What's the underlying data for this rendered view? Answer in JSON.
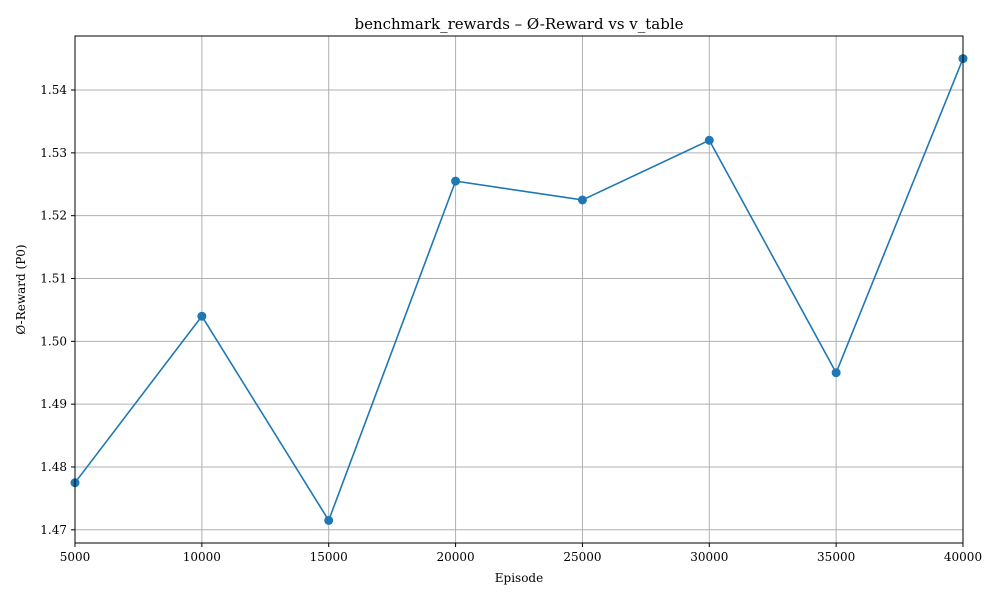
{
  "chart_data": {
    "type": "line",
    "title": "benchmark_rewards – Ø-Reward vs v_table",
    "xlabel": "Episode",
    "ylabel": "Ø-Reward (P0)",
    "xlim": [
      5000,
      40000
    ],
    "ylim": [
      1.4679,
      1.5486
    ],
    "xticks": [
      5000,
      10000,
      15000,
      20000,
      25000,
      30000,
      35000,
      40000
    ],
    "xtick_labels": [
      "5000",
      "10000",
      "15000",
      "20000",
      "25000",
      "30000",
      "35000",
      "40000"
    ],
    "yticks": [
      1.47,
      1.48,
      1.49,
      1.5,
      1.51,
      1.52,
      1.53,
      1.54
    ],
    "ytick_labels": [
      "1.47",
      "1.48",
      "1.49",
      "1.50",
      "1.51",
      "1.52",
      "1.53",
      "1.54"
    ],
    "grid": true,
    "legend": "none",
    "series": [
      {
        "color": "#1f77b4",
        "marker": "circle",
        "x": [
          5000,
          10000,
          15000,
          20000,
          25000,
          30000,
          35000,
          40000
        ],
        "y": [
          1.4775,
          1.504,
          1.4715,
          1.5255,
          1.5225,
          1.532,
          1.495,
          1.545
        ]
      }
    ]
  }
}
